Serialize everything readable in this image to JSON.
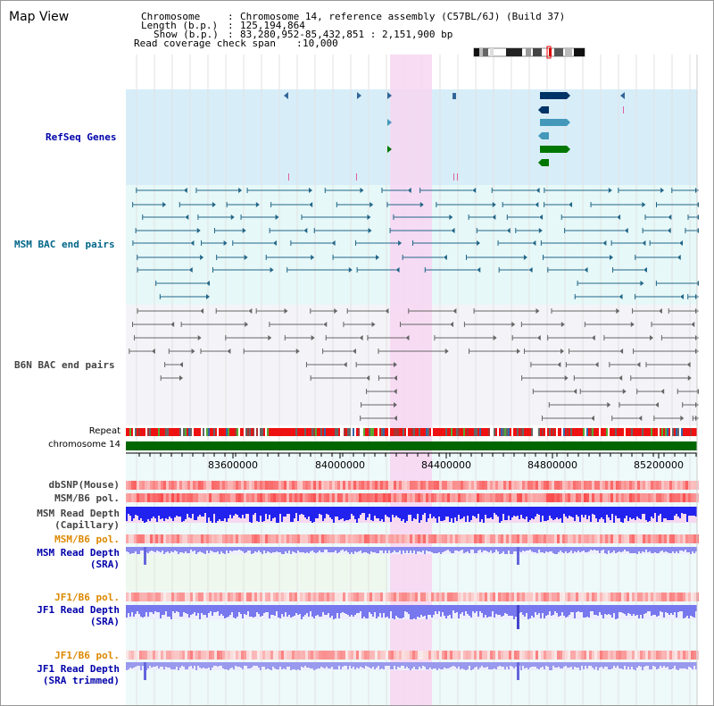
{
  "title": "Map View",
  "header": {
    "chromosome_label": "Chromosome",
    "chromosome_value": "Chromosome 14, reference assembly (C57BL/6J) (Build 37)",
    "length_label": "Length (b.p.)",
    "length_value": "125,194,864",
    "show_label": "Show (b.p.)",
    "show_value": "83,280,952-85,432,851 : 2,151,900 bp",
    "coverage_label": "Read coverage check span",
    "coverage_value": "10,000"
  },
  "tracks": {
    "refseq": "RefSeq Genes",
    "msm_bac": "MSM BAC end pairs",
    "b6n_bac": "B6N BAC end pairs",
    "repeat": "Repeat",
    "chromosome": "chromosome 14",
    "dbsnp": "dbSNP(Mouse)",
    "msm_b6_pol": "MSM/B6 pol.",
    "msm_read_depth_cap": "MSM Read Depth\n(Capillary)",
    "msm_b6_pol_2": "MSM/B6 pol.",
    "msm_read_depth_sra": "MSM Read Depth\n(SRA)",
    "jf1_b6_pol": "JF1/B6 pol.",
    "jf1_read_depth_sra": "JF1 Read Depth\n(SRA)",
    "jf1_b6_pol_2": "JF1/B6 pol.",
    "jf1_read_depth_trim": "JF1 Read Depth\n(SRA trimmed)"
  },
  "axis": {
    "ticks": [
      "83600000",
      "84000000",
      "84400000",
      "84800000",
      "85200000"
    ]
  },
  "colors": {
    "label_blue": "#0000aa",
    "label_teal": "#006688",
    "label_gray": "#444444",
    "label_orange": "#dd8800",
    "highlight": "#f7d6f2",
    "refseq_bg": "#d7eef9",
    "msm_bg": "#e6f8f8",
    "b6n_bg": "#f4f4f8",
    "chromosome_bar": "#006600",
    "depth_blue": "#2222ee",
    "depth_sra": "#8888ee"
  }
}
